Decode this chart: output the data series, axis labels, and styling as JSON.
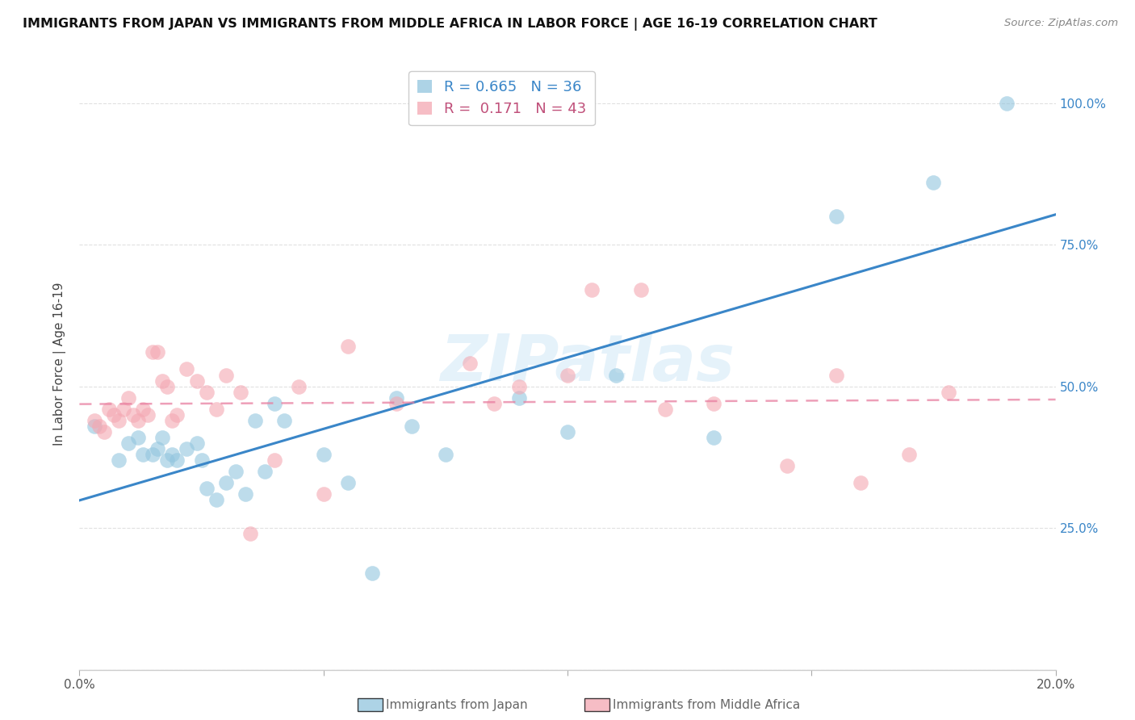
{
  "title": "IMMIGRANTS FROM JAPAN VS IMMIGRANTS FROM MIDDLE AFRICA IN LABOR FORCE | AGE 16-19 CORRELATION CHART",
  "source": "Source: ZipAtlas.com",
  "ylabel": "In Labor Force | Age 16-19",
  "x_min": 0.0,
  "x_max": 0.2,
  "y_min": 0.0,
  "y_max": 1.08,
  "x_ticks": [
    0.0,
    0.05,
    0.1,
    0.15,
    0.2
  ],
  "x_tick_labels": [
    "0.0%",
    "",
    "",
    "",
    "20.0%"
  ],
  "y_ticks_right": [
    0.25,
    0.5,
    0.75,
    1.0
  ],
  "y_tick_labels_right": [
    "25.0%",
    "50.0%",
    "75.0%",
    "100.0%"
  ],
  "japan_color": "#92c5de",
  "japan_color_line": "#3a86c8",
  "middle_africa_color": "#f4a7b2",
  "middle_africa_color_line": "#e87fa0",
  "legend_japan_R": "0.665",
  "legend_japan_N": "36",
  "legend_africa_R": "0.171",
  "legend_africa_N": "43",
  "japan_scatter_x": [
    0.003,
    0.008,
    0.01,
    0.012,
    0.013,
    0.015,
    0.016,
    0.017,
    0.018,
    0.019,
    0.02,
    0.022,
    0.024,
    0.025,
    0.026,
    0.028,
    0.03,
    0.032,
    0.034,
    0.036,
    0.038,
    0.04,
    0.042,
    0.05,
    0.055,
    0.06,
    0.065,
    0.068,
    0.075,
    0.09,
    0.1,
    0.11,
    0.13,
    0.155,
    0.175,
    0.19
  ],
  "japan_scatter_y": [
    0.43,
    0.37,
    0.4,
    0.41,
    0.38,
    0.38,
    0.39,
    0.41,
    0.37,
    0.38,
    0.37,
    0.39,
    0.4,
    0.37,
    0.32,
    0.3,
    0.33,
    0.35,
    0.31,
    0.44,
    0.35,
    0.47,
    0.44,
    0.38,
    0.33,
    0.17,
    0.48,
    0.43,
    0.38,
    0.48,
    0.42,
    0.52,
    0.41,
    0.8,
    0.86,
    1.0
  ],
  "africa_scatter_x": [
    0.003,
    0.004,
    0.005,
    0.006,
    0.007,
    0.008,
    0.009,
    0.01,
    0.011,
    0.012,
    0.013,
    0.014,
    0.015,
    0.016,
    0.017,
    0.018,
    0.019,
    0.02,
    0.022,
    0.024,
    0.026,
    0.028,
    0.03,
    0.033,
    0.035,
    0.04,
    0.045,
    0.05,
    0.055,
    0.065,
    0.08,
    0.085,
    0.09,
    0.1,
    0.105,
    0.115,
    0.12,
    0.13,
    0.145,
    0.155,
    0.16,
    0.17,
    0.178
  ],
  "africa_scatter_y": [
    0.44,
    0.43,
    0.42,
    0.46,
    0.45,
    0.44,
    0.46,
    0.48,
    0.45,
    0.44,
    0.46,
    0.45,
    0.56,
    0.56,
    0.51,
    0.5,
    0.44,
    0.45,
    0.53,
    0.51,
    0.49,
    0.46,
    0.52,
    0.49,
    0.24,
    0.37,
    0.5,
    0.31,
    0.57,
    0.47,
    0.54,
    0.47,
    0.5,
    0.52,
    0.67,
    0.67,
    0.46,
    0.47,
    0.36,
    0.52,
    0.33,
    0.38,
    0.49
  ],
  "background_color": "#ffffff",
  "grid_color": "#e0e0e0"
}
